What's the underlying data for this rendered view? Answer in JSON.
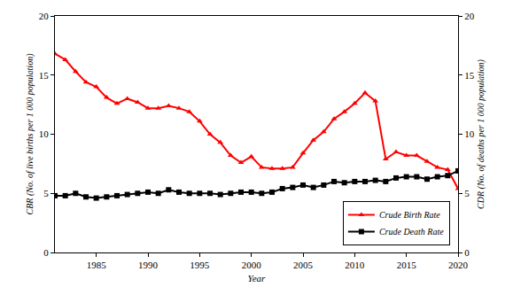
{
  "chart_data": {
    "type": "line",
    "x_label": "Year",
    "y_label": "CBR (No. of live births per 1 000 population)",
    "y2_label": "CDR (No. of deaths per 1 000 population)",
    "x": [
      1981,
      1982,
      1983,
      1984,
      1985,
      1986,
      1987,
      1988,
      1989,
      1990,
      1991,
      1992,
      1993,
      1994,
      1995,
      1996,
      1997,
      1998,
      1999,
      2000,
      2001,
      2002,
      2003,
      2004,
      2005,
      2006,
      2007,
      2008,
      2009,
      2010,
      2011,
      2012,
      2013,
      2014,
      2015,
      2016,
      2017,
      2018,
      2019,
      2020
    ],
    "series": [
      {
        "name": "Crude Birth Rate",
        "color": "#ff0000",
        "marker": "triangle-up",
        "line_style": "solid",
        "values": [
          16.8,
          16.3,
          15.3,
          14.4,
          14.0,
          13.1,
          12.6,
          13.0,
          12.7,
          12.2,
          12.2,
          12.4,
          12.2,
          11.9,
          11.1,
          10.0,
          9.3,
          8.2,
          7.6,
          8.1,
          7.2,
          7.1,
          7.1,
          7.2,
          8.4,
          9.5,
          10.2,
          11.3,
          11.9,
          12.6,
          13.5,
          12.8,
          7.9,
          8.5,
          8.2,
          8.2,
          7.7,
          7.2,
          7.0,
          5.4
        ]
      },
      {
        "name": "Crude Death Rate",
        "color": "#000000",
        "marker": "square",
        "line_style": "solid",
        "axis": "y2",
        "values": [
          4.8,
          4.8,
          5.0,
          4.7,
          4.6,
          4.7,
          4.8,
          4.9,
          5.0,
          5.1,
          5.0,
          5.3,
          5.1,
          5.0,
          5.0,
          5.0,
          4.9,
          5.0,
          5.1,
          5.1,
          5.0,
          5.1,
          5.4,
          5.5,
          5.7,
          5.5,
          5.7,
          6.0,
          5.9,
          6.0,
          6.0,
          6.1,
          6.0,
          6.3,
          6.4,
          6.4,
          6.2,
          6.4,
          6.5,
          6.9
        ]
      }
    ],
    "xlim": [
      1981,
      2020
    ],
    "xticks": [
      1985,
      1990,
      1995,
      2000,
      2005,
      2010,
      2015,
      2020
    ],
    "ylim": [
      0,
      20
    ],
    "yticks": [
      0,
      5,
      10,
      15,
      20
    ],
    "y2lim": [
      0,
      20
    ],
    "y2ticks": [
      0,
      5,
      10,
      15,
      20
    ],
    "grid": false,
    "legend": "lower right"
  }
}
